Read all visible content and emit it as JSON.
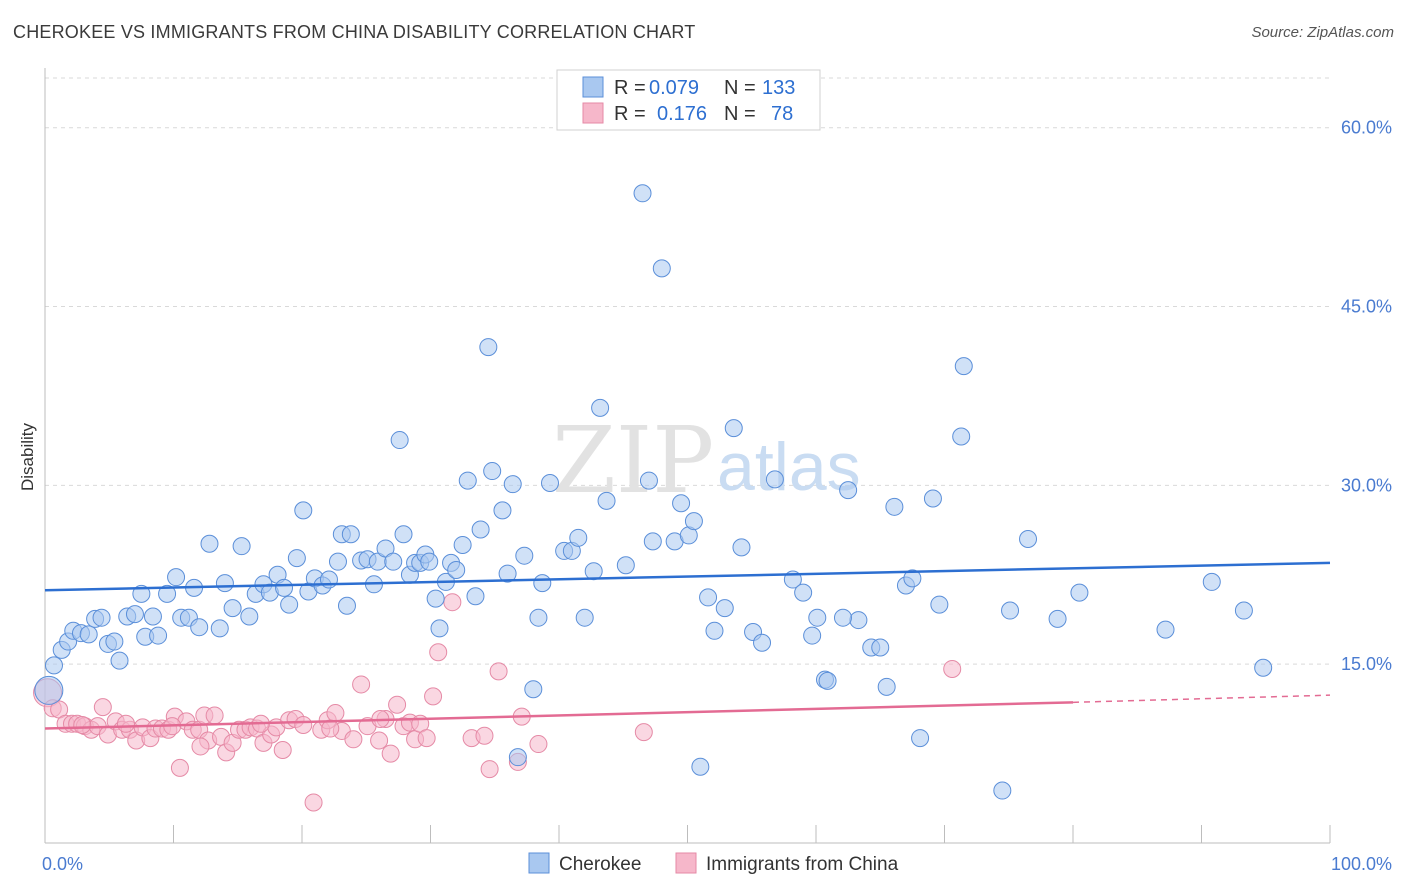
{
  "title": "CHEROKEE VS IMMIGRANTS FROM CHINA DISABILITY CORRELATION CHART",
  "source": "Source: ZipAtlas.com",
  "watermark": {
    "zip": "ZIP",
    "atlas": "atlas"
  },
  "legend": {
    "rows": [
      {
        "r_label": "R =",
        "r_value": "0.079",
        "n_label": "N =",
        "n_value": "133"
      },
      {
        "r_label": "R =",
        "r_value": "0.176",
        "n_label": "N =",
        "n_value": "78"
      }
    ]
  },
  "colors": {
    "cherokee_fill": "#a9c8f0",
    "cherokee_stroke": "#5b8fd9",
    "cherokee_line": "#2d6fd1",
    "china_fill": "#f6b7ca",
    "china_stroke": "#e58aa6",
    "china_line": "#e36b93",
    "tick_text": "#4a7bd0",
    "grid": "#d9d9d9"
  },
  "chart_data": {
    "type": "scatter",
    "title": "CHEROKEE VS IMMIGRANTS FROM CHINA DISABILITY CORRELATION CHART",
    "xlabel": "",
    "ylabel": "Disability",
    "xlim": [
      0,
      100
    ],
    "ylim": [
      0,
      60
    ],
    "x_tick_labels": [
      "0.0%",
      "100.0%"
    ],
    "y_ticks": [
      15,
      30,
      45,
      60
    ],
    "y_tick_labels": [
      "15.0%",
      "30.0%",
      "45.0%",
      "60.0%"
    ],
    "grid": true,
    "legend_position": "top-center",
    "series": [
      {
        "name": "Cherokee",
        "r": 0.079,
        "n": 133,
        "trend": {
          "x": [
            0,
            100
          ],
          "y": [
            21.2,
            23.5
          ]
        },
        "points": [
          [
            0.3,
            12.8
          ],
          [
            0.7,
            14.9
          ],
          [
            1.3,
            16.2
          ],
          [
            1.8,
            16.9
          ],
          [
            2.2,
            17.8
          ],
          [
            2.8,
            17.6
          ],
          [
            3.4,
            17.5
          ],
          [
            3.9,
            18.8
          ],
          [
            4.4,
            18.9
          ],
          [
            4.9,
            16.7
          ],
          [
            5.4,
            16.9
          ],
          [
            5.8,
            15.3
          ],
          [
            6.4,
            19.0
          ],
          [
            7.0,
            19.2
          ],
          [
            7.5,
            20.9
          ],
          [
            7.8,
            17.3
          ],
          [
            8.4,
            19.0
          ],
          [
            8.8,
            17.4
          ],
          [
            9.5,
            20.9
          ],
          [
            10.2,
            22.3
          ],
          [
            10.6,
            18.9
          ],
          [
            11.2,
            18.9
          ],
          [
            11.6,
            21.4
          ],
          [
            12.0,
            18.1
          ],
          [
            12.8,
            25.1
          ],
          [
            13.6,
            18.0
          ],
          [
            14.0,
            21.8
          ],
          [
            14.6,
            19.7
          ],
          [
            15.3,
            24.9
          ],
          [
            15.9,
            19.0
          ],
          [
            16.4,
            20.9
          ],
          [
            17.0,
            21.7
          ],
          [
            17.5,
            21.0
          ],
          [
            18.1,
            22.5
          ],
          [
            18.6,
            21.4
          ],
          [
            19.0,
            20.0
          ],
          [
            19.6,
            23.9
          ],
          [
            20.1,
            27.9
          ],
          [
            20.5,
            21.1
          ],
          [
            21.0,
            22.2
          ],
          [
            21.6,
            21.6
          ],
          [
            22.1,
            22.1
          ],
          [
            22.8,
            23.6
          ],
          [
            23.1,
            25.9
          ],
          [
            23.5,
            19.9
          ],
          [
            23.8,
            25.9
          ],
          [
            24.6,
            23.7
          ],
          [
            25.1,
            23.8
          ],
          [
            25.6,
            21.7
          ],
          [
            25.9,
            23.6
          ],
          [
            26.5,
            24.7
          ],
          [
            27.1,
            23.6
          ],
          [
            27.6,
            33.8
          ],
          [
            27.9,
            25.9
          ],
          [
            28.4,
            22.5
          ],
          [
            28.8,
            23.5
          ],
          [
            29.2,
            23.5
          ],
          [
            29.6,
            24.2
          ],
          [
            29.9,
            23.6
          ],
          [
            30.4,
            20.5
          ],
          [
            30.7,
            18.0
          ],
          [
            31.2,
            21.9
          ],
          [
            31.6,
            23.5
          ],
          [
            32.0,
            22.9
          ],
          [
            32.5,
            25.0
          ],
          [
            32.9,
            30.4
          ],
          [
            33.5,
            20.7
          ],
          [
            33.9,
            26.3
          ],
          [
            34.5,
            41.6
          ],
          [
            34.8,
            31.2
          ],
          [
            35.6,
            27.9
          ],
          [
            36.0,
            22.6
          ],
          [
            36.4,
            30.1
          ],
          [
            36.8,
            7.2
          ],
          [
            37.3,
            24.1
          ],
          [
            38.0,
            12.9
          ],
          [
            38.4,
            18.9
          ],
          [
            38.7,
            21.8
          ],
          [
            39.3,
            30.2
          ],
          [
            40.4,
            24.5
          ],
          [
            41.0,
            24.5
          ],
          [
            41.5,
            25.6
          ],
          [
            42.0,
            18.9
          ],
          [
            42.7,
            22.8
          ],
          [
            43.2,
            36.5
          ],
          [
            43.7,
            28.7
          ],
          [
            45.2,
            23.3
          ],
          [
            46.5,
            54.5
          ],
          [
            47.0,
            30.4
          ],
          [
            47.3,
            25.3
          ],
          [
            48.0,
            48.2
          ],
          [
            49.0,
            25.3
          ],
          [
            49.5,
            28.5
          ],
          [
            50.1,
            25.8
          ],
          [
            50.5,
            27.0
          ],
          [
            51.0,
            6.4
          ],
          [
            51.6,
            20.6
          ],
          [
            52.1,
            17.8
          ],
          [
            52.9,
            19.7
          ],
          [
            53.6,
            34.8
          ],
          [
            54.2,
            24.8
          ],
          [
            55.1,
            17.7
          ],
          [
            55.8,
            16.8
          ],
          [
            56.8,
            30.5
          ],
          [
            58.2,
            22.1
          ],
          [
            59.0,
            21.0
          ],
          [
            59.7,
            17.4
          ],
          [
            60.1,
            18.9
          ],
          [
            60.7,
            13.7
          ],
          [
            60.9,
            13.6
          ],
          [
            62.5,
            29.6
          ],
          [
            63.3,
            18.7
          ],
          [
            64.3,
            16.4
          ],
          [
            65.0,
            16.4
          ],
          [
            65.5,
            13.1
          ],
          [
            66.1,
            28.2
          ],
          [
            67.0,
            21.6
          ],
          [
            67.5,
            22.2
          ],
          [
            68.1,
            8.8
          ],
          [
            69.1,
            28.9
          ],
          [
            69.6,
            20.0
          ],
          [
            71.5,
            40.0
          ],
          [
            71.3,
            34.1
          ],
          [
            74.5,
            4.4
          ],
          [
            75.1,
            19.5
          ],
          [
            76.5,
            25.5
          ],
          [
            78.8,
            18.8
          ],
          [
            80.5,
            21.0
          ],
          [
            87.2,
            17.9
          ],
          [
            90.8,
            21.9
          ],
          [
            93.3,
            19.5
          ],
          [
            94.8,
            14.7
          ],
          [
            62.1,
            18.9
          ]
        ]
      },
      {
        "name": "Immigrants from China",
        "r": 0.176,
        "n": 78,
        "trend": {
          "x": [
            0,
            80
          ],
          "y": [
            9.6,
            11.8
          ]
        },
        "trend_dashed": {
          "x": [
            80,
            100
          ],
          "y": [
            11.8,
            12.4
          ]
        },
        "points": [
          [
            0.2,
            12.6
          ],
          [
            0.6,
            11.3
          ],
          [
            1.1,
            11.2
          ],
          [
            1.6,
            10.0
          ],
          [
            2.1,
            10.0
          ],
          [
            2.5,
            10.0
          ],
          [
            3.1,
            9.8
          ],
          [
            3.6,
            9.5
          ],
          [
            4.1,
            9.8
          ],
          [
            4.5,
            11.4
          ],
          [
            4.9,
            9.1
          ],
          [
            5.5,
            10.2
          ],
          [
            6.0,
            9.5
          ],
          [
            6.6,
            9.5
          ],
          [
            7.1,
            8.6
          ],
          [
            7.6,
            9.7
          ],
          [
            8.2,
            8.8
          ],
          [
            8.6,
            9.6
          ],
          [
            9.1,
            9.6
          ],
          [
            9.6,
            9.5
          ],
          [
            10.1,
            10.6
          ],
          [
            10.5,
            6.3
          ],
          [
            11.0,
            10.2
          ],
          [
            11.5,
            9.5
          ],
          [
            12.0,
            9.5
          ],
          [
            12.4,
            10.7
          ],
          [
            12.7,
            8.6
          ],
          [
            13.2,
            10.7
          ],
          [
            13.7,
            8.9
          ],
          [
            14.1,
            7.6
          ],
          [
            14.6,
            8.4
          ],
          [
            15.1,
            9.5
          ],
          [
            15.6,
            9.5
          ],
          [
            16.0,
            9.7
          ],
          [
            16.5,
            9.6
          ],
          [
            17.0,
            8.4
          ],
          [
            17.6,
            9.1
          ],
          [
            18.0,
            9.7
          ],
          [
            18.5,
            7.8
          ],
          [
            19.0,
            10.3
          ],
          [
            19.5,
            10.4
          ],
          [
            20.1,
            9.9
          ],
          [
            20.9,
            3.4
          ],
          [
            21.5,
            9.5
          ],
          [
            22.0,
            10.3
          ],
          [
            22.6,
            10.9
          ],
          [
            23.1,
            9.4
          ],
          [
            24.0,
            8.7
          ],
          [
            24.6,
            13.3
          ],
          [
            25.1,
            9.8
          ],
          [
            26.0,
            8.6
          ],
          [
            26.5,
            10.4
          ],
          [
            26.9,
            7.5
          ],
          [
            27.4,
            11.6
          ],
          [
            27.9,
            9.8
          ],
          [
            28.4,
            10.1
          ],
          [
            28.8,
            8.7
          ],
          [
            29.2,
            10.0
          ],
          [
            29.7,
            8.8
          ],
          [
            30.2,
            12.3
          ],
          [
            30.6,
            16.0
          ],
          [
            31.7,
            20.2
          ],
          [
            33.2,
            8.8
          ],
          [
            34.6,
            6.2
          ],
          [
            35.3,
            14.4
          ],
          [
            36.8,
            6.8
          ],
          [
            37.1,
            10.6
          ],
          [
            38.4,
            8.3
          ],
          [
            46.6,
            9.3
          ],
          [
            70.6,
            14.6
          ],
          [
            2.9,
            9.9
          ],
          [
            6.3,
            10.0
          ],
          [
            9.9,
            9.8
          ],
          [
            12.1,
            8.1
          ],
          [
            16.8,
            10.0
          ],
          [
            22.2,
            9.6
          ],
          [
            26.1,
            10.4
          ],
          [
            34.2,
            9.0
          ]
        ]
      }
    ]
  },
  "bottom_legend": [
    "Cherokee",
    "Immigrants from China"
  ]
}
